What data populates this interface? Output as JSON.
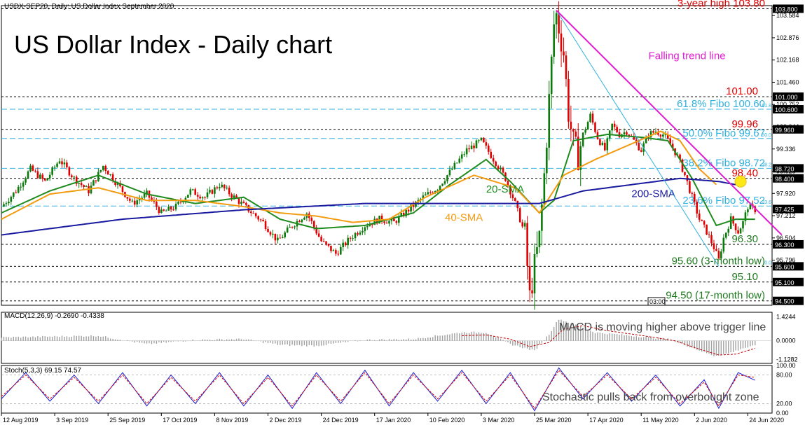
{
  "title": "US Dollar Index - Daily chart",
  "symbol_header": "USDX-SEP20, Daily:  US Dollar Index September 2020",
  "timestamp_box": "03:00",
  "colors": {
    "background": "#ffffff",
    "bull": "#0a7a0a",
    "bear": "#e00000",
    "sma20": "#1f8b1f",
    "sma40": "#f39c12",
    "sma200": "#1a1aa0",
    "trend": "#e020d0",
    "fibo": "#32b0e0",
    "macd_hist": "#a0a0a0",
    "macd_signal": "#c00000",
    "stoch_main": "#1a1ad0",
    "stoch_signal": "#e00000",
    "level_red": "#e00000",
    "level_green": "#1f7a1f",
    "price_box": "#000000"
  },
  "chart_data": [
    {
      "type": "candlestick",
      "panel": "price",
      "ylim": [
        94.36,
        103.9
      ],
      "y_ticks": [
        103.584,
        102.876,
        102.168,
        101.46,
        100.752,
        100.044,
        99.336,
        98.628,
        97.92,
        97.212,
        96.504,
        95.796,
        95.1
      ],
      "x_tick_labels": [
        "12 Aug 2019",
        "3 Sep 2019",
        "25 Sep 2019",
        "17 Oct 2019",
        "8 Nov 2019",
        "2 Dec 2019",
        "24 Dec 2019",
        "17 Jan 2020",
        "10 Feb 2020",
        "3 Mar 2020",
        "25 Mar 2020",
        "17 Apr 2020",
        "11 May 2020",
        "2 Jun 2020",
        "24 Jun 2020"
      ],
      "close_path": [
        [
          0,
          97.5
        ],
        [
          6,
          98.0
        ],
        [
          12,
          98.7
        ],
        [
          18,
          98.3
        ],
        [
          24,
          99.0
        ],
        [
          30,
          98.4
        ],
        [
          36,
          98.0
        ],
        [
          42,
          98.8
        ],
        [
          48,
          98.2
        ],
        [
          54,
          97.6
        ],
        [
          60,
          97.9
        ],
        [
          66,
          97.3
        ],
        [
          72,
          97.5
        ],
        [
          78,
          98.0
        ],
        [
          84,
          97.8
        ],
        [
          90,
          98.2
        ],
        [
          96,
          97.8
        ],
        [
          102,
          97.4
        ],
        [
          108,
          97.0
        ],
        [
          114,
          96.4
        ],
        [
          120,
          96.9
        ],
        [
          126,
          97.3
        ],
        [
          132,
          96.4
        ],
        [
          138,
          96.0
        ],
        [
          144,
          96.5
        ],
        [
          150,
          96.9
        ],
        [
          156,
          97.1
        ],
        [
          162,
          97.0
        ],
        [
          168,
          97.4
        ],
        [
          174,
          97.8
        ],
        [
          180,
          98.1
        ],
        [
          186,
          98.7
        ],
        [
          192,
          99.3
        ],
        [
          198,
          99.6
        ],
        [
          204,
          98.9
        ],
        [
          208,
          98.4
        ],
        [
          212,
          97.6
        ],
        [
          216,
          96.6
        ],
        [
          218,
          94.6
        ],
        [
          220,
          95.6
        ],
        [
          222,
          96.5
        ],
        [
          224,
          98.5
        ],
        [
          226,
          100.9
        ],
        [
          228,
          103.3
        ],
        [
          229,
          103.6
        ],
        [
          232,
          102.4
        ],
        [
          234,
          100.5
        ],
        [
          236,
          99.5
        ],
        [
          238,
          99.1
        ],
        [
          240,
          99.8
        ],
        [
          243,
          100.4
        ],
        [
          246,
          99.7
        ],
        [
          249,
          99.3
        ],
        [
          252,
          100.1
        ],
        [
          255,
          99.8
        ],
        [
          258,
          99.9
        ],
        [
          261,
          99.6
        ],
        [
          264,
          99.3
        ],
        [
          267,
          99.8
        ],
        [
          270,
          99.9
        ],
        [
          273,
          99.8
        ],
        [
          276,
          99.5
        ],
        [
          279,
          99.1
        ],
        [
          282,
          98.5
        ],
        [
          285,
          97.8
        ],
        [
          288,
          97.1
        ],
        [
          291,
          96.7
        ],
        [
          294,
          96.2
        ],
        [
          296,
          95.8
        ],
        [
          298,
          96.5
        ],
        [
          301,
          97.1
        ],
        [
          304,
          96.7
        ],
        [
          306,
          97.0
        ],
        [
          308,
          97.5
        ],
        [
          311,
          97.4
        ]
      ],
      "series": [
        {
          "name": "20-SMA",
          "values": [
            [
              0,
              97.3
            ],
            [
              20,
              98.0
            ],
            [
              40,
              98.5
            ],
            [
              60,
              97.9
            ],
            [
              80,
              97.6
            ],
            [
              100,
              97.8
            ],
            [
              115,
              97.1
            ],
            [
              130,
              96.8
            ],
            [
              150,
              96.9
            ],
            [
              170,
              97.3
            ],
            [
              185,
              98.2
            ],
            [
              200,
              99.0
            ],
            [
              210,
              98.3
            ],
            [
              222,
              97.3
            ],
            [
              228,
              97.7
            ],
            [
              236,
              99.6
            ],
            [
              250,
              99.8
            ],
            [
              265,
              99.7
            ],
            [
              275,
              99.6
            ],
            [
              285,
              98.4
            ],
            [
              295,
              96.9
            ],
            [
              303,
              97.1
            ],
            [
              311,
              97.1
            ]
          ]
        },
        {
          "name": "40-SMA",
          "values": [
            [
              0,
              97.1
            ],
            [
              20,
              97.9
            ],
            [
              40,
              98.1
            ],
            [
              60,
              97.7
            ],
            [
              80,
              97.7
            ],
            [
              100,
              97.5
            ],
            [
              115,
              97.3
            ],
            [
              130,
              97.2
            ],
            [
              145,
              97.0
            ],
            [
              160,
              97.1
            ],
            [
              175,
              97.8
            ],
            [
              195,
              98.5
            ],
            [
              212,
              98.1
            ],
            [
              222,
              97.3
            ],
            [
              232,
              98.5
            ],
            [
              245,
              99.0
            ],
            [
              260,
              99.5
            ],
            [
              272,
              99.9
            ],
            [
              280,
              99.6
            ],
            [
              288,
              98.7
            ],
            [
              295,
              98.2
            ]
          ]
        },
        {
          "name": "200-SMA",
          "values": [
            [
              0,
              96.6
            ],
            [
              50,
              97.1
            ],
            [
              100,
              97.4
            ],
            [
              150,
              97.6
            ],
            [
              200,
              97.6
            ],
            [
              222,
              97.6
            ],
            [
              240,
              98.0
            ],
            [
              260,
              98.2
            ],
            [
              280,
              98.4
            ],
            [
              296,
              98.3
            ],
            [
              303,
              98.2
            ]
          ]
        }
      ],
      "labels": [
        {
          "text": "20-SMA",
          "x": 200,
          "y": 97.95
        },
        {
          "text": "40-SMA",
          "x": 183,
          "y": 97.05
        },
        {
          "text": "200-SMA",
          "x": 260,
          "y": 97.8
        },
        {
          "text": "Falling trend line",
          "x": 267,
          "y": 102.2
        }
      ],
      "trendline": [
        [
          229,
          103.75
        ],
        [
          322,
          96.6
        ]
      ],
      "fibo_fan": [
        [
          229,
          103.75
        ],
        [
          296,
          95.6
        ]
      ],
      "horizontal_levels": [
        {
          "value": 103.8,
          "label": "3-year high 103.80",
          "box": "103.800",
          "color": "red"
        },
        {
          "value": 101.0,
          "label": "101.00",
          "box": "101.000",
          "color": "red"
        },
        {
          "value": 100.6,
          "label": "61.8% Fibo 100.60",
          "tag": "61.8",
          "box": "100.600",
          "color": "fibo"
        },
        {
          "value": 99.96,
          "label": "99.96",
          "box": "99.960",
          "color": "red"
        },
        {
          "value": 99.67,
          "label": "50.0% Fibo 99.67",
          "tag": "50.0",
          "color": "fibo"
        },
        {
          "value": 98.72,
          "label": "38.2% Fibo 98.72",
          "tag": "38.2",
          "box": "98.720",
          "color": "fibo"
        },
        {
          "value": 98.4,
          "label": "98.40",
          "box": "98.400",
          "color": "red"
        },
        {
          "value": 97.52,
          "label": "23.6% Fibo 97.52",
          "tag": "23.6",
          "color": "fibo"
        },
        {
          "value": 96.3,
          "label": "96.30",
          "box": "96.300",
          "color": "green"
        },
        {
          "value": 95.6,
          "label": "95.60 (3-month low)",
          "tag": "0.0",
          "box": "95.600",
          "color": "green"
        },
        {
          "value": 95.1,
          "label": "95.10",
          "box": "95.100",
          "color": "green"
        },
        {
          "value": 94.5,
          "label": "94.50 (17-month low)",
          "box": "94.500",
          "color": "green"
        }
      ],
      "current_price_box": "97.425",
      "current_price": 97.425
    },
    {
      "type": "histogram",
      "panel": "macd",
      "title": "MACD(12,26,9) -0.2690 -0.4338",
      "annotation": "MACD is moving higher above trigger line",
      "ylim": [
        -1.35,
        1.7
      ],
      "y_ticks": [
        1.4244,
        0.0,
        -1.1282
      ],
      "histogram": [
        [
          0,
          0.2
        ],
        [
          20,
          0.25
        ],
        [
          40,
          0.3
        ],
        [
          60,
          -0.2
        ],
        [
          80,
          0.05
        ],
        [
          100,
          0.1
        ],
        [
          115,
          -0.25
        ],
        [
          130,
          -0.3
        ],
        [
          150,
          0.05
        ],
        [
          170,
          0.1
        ],
        [
          190,
          0.5
        ],
        [
          200,
          0.5
        ],
        [
          210,
          -0.2
        ],
        [
          220,
          -0.6
        ],
        [
          226,
          0.4
        ],
        [
          230,
          1.3
        ],
        [
          236,
          1.0
        ],
        [
          245,
          0.5
        ],
        [
          260,
          0.3
        ],
        [
          275,
          0.1
        ],
        [
          285,
          -0.4
        ],
        [
          294,
          -0.9
        ],
        [
          300,
          -0.75
        ],
        [
          306,
          -0.45
        ],
        [
          311,
          -0.3
        ]
      ],
      "signal": [
        [
          190,
          0.3
        ],
        [
          200,
          0.35
        ],
        [
          210,
          0.1
        ],
        [
          218,
          -0.35
        ],
        [
          226,
          -0.1
        ],
        [
          232,
          0.7
        ],
        [
          240,
          0.9
        ],
        [
          250,
          0.6
        ],
        [
          265,
          0.3
        ],
        [
          278,
          0.0
        ],
        [
          288,
          -0.5
        ],
        [
          296,
          -0.85
        ],
        [
          303,
          -0.8
        ],
        [
          311,
          -0.45
        ]
      ]
    },
    {
      "type": "line",
      "panel": "stochastic",
      "title": "Stoch(5,3,3) 69.15 74.57",
      "annotation": "Stochastic pulls back from overbought zone",
      "ylim": [
        0,
        100
      ],
      "y_ticks": [
        100.0,
        80.0,
        20.0,
        0.0
      ],
      "series": [
        {
          "name": "main",
          "values": [
            [
              0,
              30
            ],
            [
              10,
              85
            ],
            [
              20,
              25
            ],
            [
              30,
              80
            ],
            [
              40,
              20
            ],
            [
              50,
              85
            ],
            [
              60,
              15
            ],
            [
              70,
              80
            ],
            [
              80,
              20
            ],
            [
              90,
              85
            ],
            [
              100,
              15
            ],
            [
              110,
              80
            ],
            [
              120,
              10
            ],
            [
              130,
              85
            ],
            [
              140,
              20
            ],
            [
              150,
              90
            ],
            [
              160,
              15
            ],
            [
              170,
              85
            ],
            [
              180,
              25
            ],
            [
              190,
              90
            ],
            [
              200,
              20
            ],
            [
              210,
              85
            ],
            [
              220,
              5
            ],
            [
              230,
              95
            ],
            [
              240,
              30
            ],
            [
              250,
              85
            ],
            [
              260,
              25
            ],
            [
              270,
              80
            ],
            [
              280,
              15
            ],
            [
              290,
              70
            ],
            [
              296,
              10
            ],
            [
              304,
              85
            ],
            [
              311,
              69
            ]
          ]
        },
        {
          "name": "signal",
          "values": [
            [
              0,
              35
            ],
            [
              10,
              80
            ],
            [
              20,
              30
            ],
            [
              30,
              75
            ],
            [
              40,
              25
            ],
            [
              50,
              80
            ],
            [
              60,
              20
            ],
            [
              70,
              75
            ],
            [
              80,
              25
            ],
            [
              90,
              80
            ],
            [
              100,
              20
            ],
            [
              110,
              75
            ],
            [
              120,
              15
            ],
            [
              130,
              80
            ],
            [
              140,
              25
            ],
            [
              150,
              85
            ],
            [
              160,
              20
            ],
            [
              170,
              80
            ],
            [
              180,
              30
            ],
            [
              190,
              85
            ],
            [
              200,
              25
            ],
            [
              210,
              80
            ],
            [
              220,
              10
            ],
            [
              230,
              90
            ],
            [
              240,
              35
            ],
            [
              250,
              80
            ],
            [
              260,
              30
            ],
            [
              270,
              75
            ],
            [
              280,
              20
            ],
            [
              290,
              65
            ],
            [
              296,
              15
            ],
            [
              304,
              80
            ],
            [
              311,
              75
            ]
          ]
        }
      ]
    }
  ]
}
